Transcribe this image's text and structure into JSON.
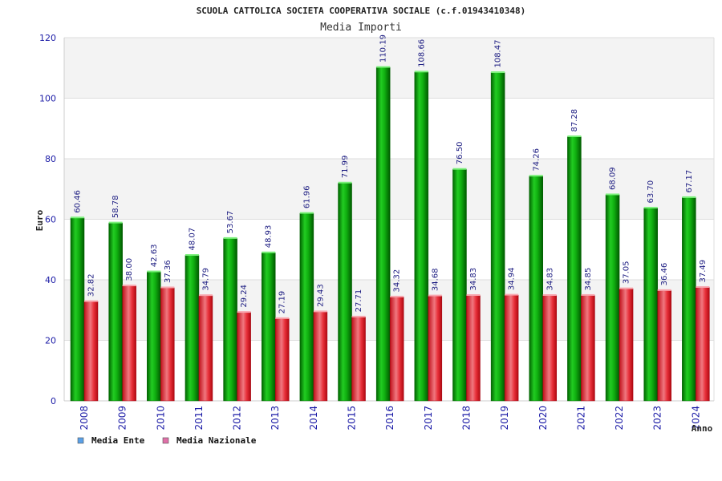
{
  "chart_data": {
    "type": "bar",
    "title": "SCUOLA CATTOLICA SOCIETA COOPERATIVA SOCIALE (c.f.01943410348)",
    "subtitle": "Media Importi",
    "xlabel": "Anno",
    "ylabel": "Euro",
    "ylim": [
      0,
      120
    ],
    "yticks": [
      0,
      20,
      40,
      60,
      80,
      100,
      120
    ],
    "grid": true,
    "legend_position": "bottom-left",
    "categories": [
      "2008",
      "2009",
      "2010",
      "2011",
      "2012",
      "2013",
      "2014",
      "2015",
      "2016",
      "2017",
      "2018",
      "2019",
      "2020",
      "2021",
      "2022",
      "2023",
      "2024"
    ],
    "series": [
      {
        "name": "Media Ente",
        "color": "#10b010",
        "legend_color": "#5aa0e8",
        "values": [
          60.46,
          58.78,
          42.63,
          48.07,
          53.67,
          48.93,
          61.96,
          71.99,
          110.19,
          108.66,
          76.5,
          108.47,
          74.26,
          87.28,
          68.09,
          63.7,
          67.17
        ],
        "labels": [
          "60.46",
          "58.78",
          "42.63",
          "48.07",
          "53.67",
          "48.93",
          "61.96",
          "71.99",
          "110.19",
          "108.66",
          "76.50",
          "108.47",
          "74.26",
          "87.28",
          "68.09",
          "63.70",
          "67.17"
        ]
      },
      {
        "name": "Media Nazionale",
        "color": "#e8303a",
        "legend_color": "#e070a8",
        "values": [
          32.82,
          38.0,
          37.36,
          34.79,
          29.24,
          27.19,
          29.43,
          27.71,
          34.32,
          34.68,
          34.83,
          34.94,
          34.83,
          34.85,
          37.05,
          36.46,
          37.49
        ],
        "labels": [
          "32.82",
          "38.00",
          "37.36",
          "34.79",
          "29.24",
          "27.19",
          "29.43",
          "27.71",
          "34.32",
          "34.68",
          "34.83",
          "34.94",
          "34.83",
          "34.85",
          "37.05",
          "36.46",
          "37.49"
        ]
      }
    ]
  }
}
